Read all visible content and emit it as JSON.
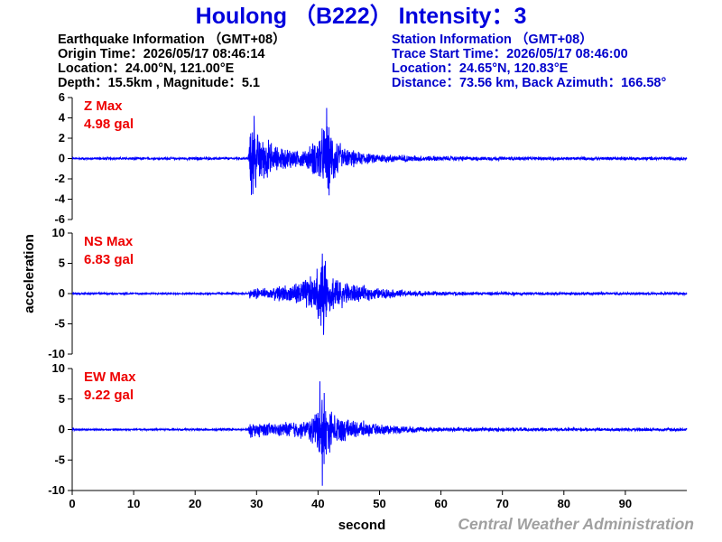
{
  "title": "Houlong （B222） Intensity：3",
  "earthquake": {
    "header": "Earthquake Information （GMT+08）",
    "origin_time": "Origin Time：2026/05/17 08:46:14",
    "location": "Location：24.00°N, 121.00°E",
    "depth_magnitude": "Depth：15.5km , Magnitude：5.1"
  },
  "station": {
    "header": "Station Information （GMT+08）",
    "trace_start": "Trace Start Time：2026/05/17 08:46:00",
    "location": "Location：24.65°N, 120.83°E",
    "distance": "Distance：73.56 km, Back Azimuth：166.58°"
  },
  "credit": "Central Weather Administration",
  "colors": {
    "title": "#0000dd",
    "info_left": "#000000",
    "info_right": "#0000cc",
    "trace": "#0000ff",
    "max_label": "#ee0000",
    "credit": "#a0a0a0"
  },
  "chart_data": {
    "type": "line",
    "xlabel": "second",
    "ylabel": "acceleration",
    "xlim": [
      0,
      100
    ],
    "xticks": [
      "0",
      "10",
      "20",
      "30",
      "40",
      "50",
      "60",
      "70",
      "80",
      "90"
    ],
    "xtick_values": [
      0,
      10,
      20,
      30,
      40,
      50,
      60,
      70,
      80,
      90
    ],
    "grid": false,
    "panels": [
      {
        "name": "Z",
        "max_title": "Z Max",
        "max_value": "4.98 gal",
        "ylim": [
          -6,
          6
        ],
        "yticks": [
          "6",
          "4",
          "2",
          "0",
          "-2",
          "-4",
          "-6"
        ],
        "ytick_values": [
          6,
          4,
          2,
          0,
          -2,
          -4,
          -6
        ],
        "noise": 0.12,
        "envelope": [
          [
            0,
            0.12
          ],
          [
            28.6,
            0.12
          ],
          [
            29.0,
            3.6
          ],
          [
            30.5,
            2.5
          ],
          [
            33,
            1.2
          ],
          [
            37,
            0.8
          ],
          [
            39.5,
            1.6
          ],
          [
            41.5,
            3.6
          ],
          [
            44,
            1.0
          ],
          [
            48,
            0.5
          ],
          [
            55,
            0.3
          ],
          [
            65,
            0.18
          ],
          [
            100,
            0.15
          ]
        ],
        "peaks": [
          [
            29.6,
            4.2
          ],
          [
            29.4,
            -3.5
          ],
          [
            41.4,
            4.98
          ],
          [
            41.6,
            -2.9
          ]
        ]
      },
      {
        "name": "NS",
        "max_title": "NS Max",
        "max_value": "6.83 gal",
        "ylim": [
          -10,
          10
        ],
        "yticks": [
          "10",
          "5",
          "0",
          "-5",
          "-10"
        ],
        "ytick_values": [
          10,
          5,
          0,
          -5,
          -10
        ],
        "noise": 0.15,
        "envelope": [
          [
            0,
            0.15
          ],
          [
            28.6,
            0.15
          ],
          [
            29.0,
            0.9
          ],
          [
            32,
            0.9
          ],
          [
            36,
            1.5
          ],
          [
            39.5,
            3.0
          ],
          [
            40.5,
            5.5
          ],
          [
            42,
            3.0
          ],
          [
            45,
            1.6
          ],
          [
            50,
            0.8
          ],
          [
            58,
            0.35
          ],
          [
            70,
            0.25
          ],
          [
            100,
            0.2
          ]
        ],
        "peaks": [
          [
            40.7,
            6.6
          ],
          [
            40.9,
            -6.83
          ],
          [
            41.2,
            5.4
          ]
        ]
      },
      {
        "name": "EW",
        "max_title": "EW Max",
        "max_value": "9.22 gal",
        "ylim": [
          -10,
          10
        ],
        "yticks": [
          "10",
          "5",
          "0",
          "-5",
          "-10"
        ],
        "ytick_values": [
          10,
          5,
          0,
          -5,
          -10
        ],
        "noise": 0.15,
        "envelope": [
          [
            0,
            0.15
          ],
          [
            28.6,
            0.15
          ],
          [
            29.0,
            1.2
          ],
          [
            33,
            1.1
          ],
          [
            38,
            1.4
          ],
          [
            39.8,
            3.0
          ],
          [
            40.4,
            6.5
          ],
          [
            42,
            3.0
          ],
          [
            45,
            1.6
          ],
          [
            50,
            0.8
          ],
          [
            58,
            0.4
          ],
          [
            70,
            0.3
          ],
          [
            100,
            0.25
          ]
        ],
        "peaks": [
          [
            40.3,
            7.9
          ],
          [
            40.7,
            -9.22
          ],
          [
            41.0,
            6.0
          ]
        ]
      }
    ]
  }
}
